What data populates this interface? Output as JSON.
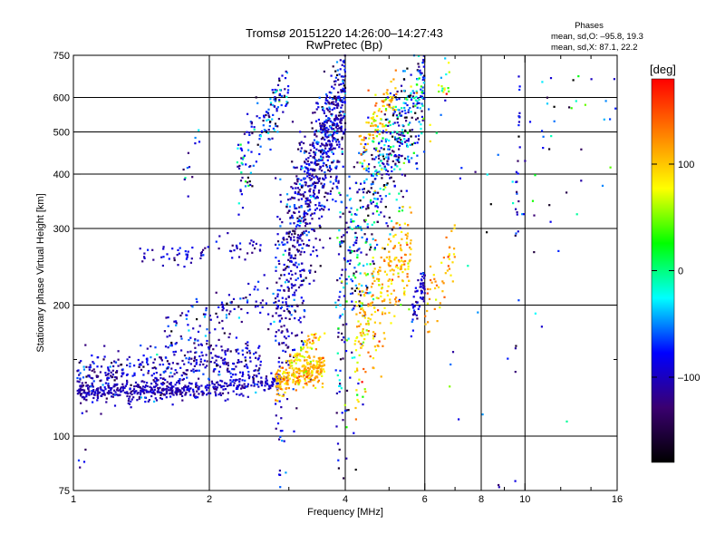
{
  "chart_data": {
    "type": "scatter",
    "title_line1": "Tromsø 20151220 14:26:00–14:27:43",
    "title_line2": "RwPretec (Bp)",
    "stats": {
      "heading": "Phases",
      "line_o": "mean, sd,O: –95.8, 19.3",
      "line_x": "mean, sd,X:  87.1, 22.2"
    },
    "xlabel": "Frequency [MHz]",
    "ylabel": "Stationary phase Virtual Height [km]",
    "x_scale": "log",
    "y_scale": "log",
    "xlim": [
      1,
      16
    ],
    "ylim": [
      75,
      750
    ],
    "x_ticks": [
      1,
      2,
      4,
      6,
      8,
      10,
      16
    ],
    "x_tick_labels": [
      "1",
      "2",
      "4",
      "6",
      "8",
      "10",
      "16"
    ],
    "x_minor_ticks": [
      3,
      5,
      7,
      9,
      12,
      14
    ],
    "y_ticks": [
      75,
      100,
      200,
      300,
      400,
      500,
      600,
      750
    ],
    "y_tick_labels": [
      "75",
      "100",
      "200",
      "300",
      "400",
      "500",
      "600",
      "750"
    ],
    "y_minor_ticks": [
      150
    ],
    "grid": true,
    "grid_x": [
      2,
      4,
      6,
      8,
      10
    ],
    "grid_y": [
      100,
      200,
      300,
      400,
      500,
      600
    ],
    "colorbar": {
      "label": "[deg]",
      "range": [
        -180,
        180
      ],
      "ticks": [
        100,
        0,
        -100
      ],
      "tick_labels": [
        "100",
        "0",
        "–100"
      ],
      "colors": [
        "#000000",
        "#3a0070",
        "#0000ff",
        "#00ffff",
        "#00ff00",
        "#ffff00",
        "#ff8000",
        "#ff0000"
      ]
    },
    "series": [
      {
        "segments": [
          {
            "x0": 1.02,
            "x1": 1.8,
            "y0": 126,
            "y1": 127,
            "ys": 3,
            "p": -105,
            "ps": 10,
            "n": 260
          },
          {
            "x0": 1.8,
            "x1": 2.9,
            "y0": 127,
            "y1": 133,
            "ys": 3,
            "p": -100,
            "ps": 12,
            "n": 160
          },
          {
            "x0": 1.02,
            "x1": 2.6,
            "y0": 135,
            "y1": 150,
            "ys": 10,
            "p": -100,
            "ps": 25,
            "n": 450
          },
          {
            "x0": 1.6,
            "x1": 2.8,
            "y0": 170,
            "y1": 210,
            "ys": 15,
            "p": -95,
            "ps": 30,
            "n": 120
          },
          {
            "x0": 1.4,
            "x1": 2.6,
            "y0": 255,
            "y1": 275,
            "ys": 8,
            "p": -100,
            "ps": 20,
            "n": 70
          },
          {
            "x0": 1.75,
            "x1": 1.9,
            "y0": 380,
            "y1": 480,
            "ys": 20,
            "p": -90,
            "ps": 40,
            "n": 12
          },
          {
            "x0": 2.3,
            "x1": 3.0,
            "y0": 400,
            "y1": 630,
            "ys": 40,
            "p": -90,
            "ps": 50,
            "n": 150
          },
          {
            "x0": 2.8,
            "x1": 4.0,
            "y0": 150,
            "y1": 600,
            "ys": 80,
            "p": -100,
            "ps": 30,
            "n": 950
          },
          {
            "x0": 2.8,
            "x1": 3.6,
            "y0": 134,
            "y1": 145,
            "ys": 5,
            "p": 110,
            "ps": 20,
            "n": 260
          },
          {
            "x0": 3.0,
            "x1": 3.6,
            "y0": 150,
            "y1": 170,
            "ys": 6,
            "p": 95,
            "ps": 25,
            "n": 60
          },
          {
            "x0": 3.8,
            "x1": 6.0,
            "y0": 180,
            "y1": 620,
            "ys": 80,
            "p": -80,
            "ps": 60,
            "n": 650
          },
          {
            "x0": 4.2,
            "x1": 5.6,
            "y0": 160,
            "y1": 280,
            "ys": 30,
            "p": 100,
            "ps": 25,
            "n": 260
          },
          {
            "x0": 4.3,
            "x1": 5.2,
            "y0": 450,
            "y1": 620,
            "ys": 40,
            "p": 100,
            "ps": 30,
            "n": 90
          },
          {
            "x0": 5.6,
            "x1": 6.0,
            "y0": 190,
            "y1": 230,
            "ys": 10,
            "p": -100,
            "ps": 20,
            "n": 60
          },
          {
            "x0": 6.0,
            "x1": 7.0,
            "y0": 200,
            "y1": 260,
            "ys": 20,
            "p": 110,
            "ps": 25,
            "n": 50
          },
          {
            "x0": 6.1,
            "x1": 6.8,
            "y0": 500,
            "y1": 680,
            "ys": 60,
            "p": 40,
            "ps": 80,
            "n": 22
          },
          {
            "x0": 6.8,
            "x1": 16.0,
            "y0": 150,
            "y1": 620,
            "ys": 150,
            "p": -60,
            "ps": 90,
            "n": 70
          },
          {
            "x0": 9.5,
            "x1": 9.75,
            "y0": 180,
            "y1": 600,
            "ys": 80,
            "p": -100,
            "ps": 30,
            "n": 30
          },
          {
            "x0": 1.02,
            "x1": 1.1,
            "y0": 88,
            "y1": 95,
            "ys": 3,
            "p": -100,
            "ps": 20,
            "n": 4
          }
        ]
      }
    ]
  }
}
